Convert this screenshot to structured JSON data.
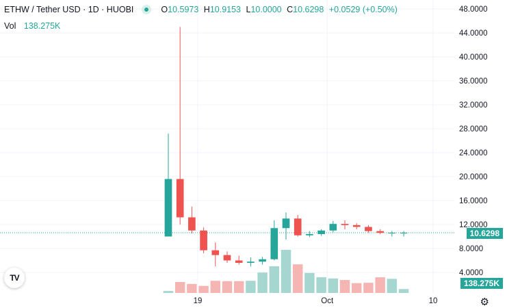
{
  "header": {
    "symbol": "ETHW / Tether USD · 1D · HUOBI",
    "ohlc": {
      "O": "10.5973",
      "H": "10.9153",
      "L": "10.0000",
      "C": "10.6298",
      "change": "+0.0529 (+0.50%)"
    }
  },
  "volume_label": "Vol",
  "volume_value": "138.275K",
  "last_price_tag": "10.6298",
  "volume_tag": "138.275K",
  "logo": "TV",
  "colors": {
    "up": "#26a69a",
    "down": "#ef5350",
    "up_vol": "#a5d6d0",
    "down_vol": "#f5b5b3"
  },
  "chart_data": {
    "type": "candlestick",
    "title": "ETHW / Tether USD · 1D · HUOBI",
    "y_axis_ticks": [
      "48.0000",
      "44.0000",
      "40.0000",
      "36.0000",
      "32.0000",
      "28.0000",
      "24.0000",
      "20.0000",
      "16.0000",
      "12.0000",
      "8.0000",
      "4.0000"
    ],
    "ylim": [
      0,
      49.5
    ],
    "x_axis_ticks": [
      {
        "label": "19",
        "index": 2.5
      },
      {
        "label": "Oct",
        "index": 13.5
      },
      {
        "label": "10",
        "index": 22.5
      }
    ],
    "x_index_range": [
      -14.3,
      24.3
    ],
    "last_price": 10.6298,
    "candles": [
      {
        "o": 10.0,
        "h": 27.2,
        "l": 10.0,
        "c": 19.6,
        "v": 5
      },
      {
        "o": 19.6,
        "h": 45.0,
        "l": 12.0,
        "c": 13.2,
        "v": 28
      },
      {
        "o": 13.2,
        "h": 15.0,
        "l": 10.5,
        "c": 11.0,
        "v": 23
      },
      {
        "o": 11.0,
        "h": 11.5,
        "l": 7.2,
        "c": 7.7,
        "v": 18
      },
      {
        "o": 7.7,
        "h": 9.0,
        "l": 5.0,
        "c": 6.9,
        "v": 31
      },
      {
        "o": 6.9,
        "h": 7.5,
        "l": 5.6,
        "c": 6.0,
        "v": 30
      },
      {
        "o": 6.0,
        "h": 6.8,
        "l": 5.3,
        "c": 5.6,
        "v": 30
      },
      {
        "o": 5.6,
        "h": 6.5,
        "l": 5.0,
        "c": 5.8,
        "v": 31
      },
      {
        "o": 5.8,
        "h": 6.6,
        "l": 5.3,
        "c": 6.2,
        "v": 52
      },
      {
        "o": 6.2,
        "h": 12.7,
        "l": 6.0,
        "c": 11.4,
        "v": 68
      },
      {
        "o": 11.4,
        "h": 14.0,
        "l": 9.5,
        "c": 13.0,
        "v": 110
      },
      {
        "o": 13.0,
        "h": 13.6,
        "l": 10.0,
        "c": 10.2,
        "v": 73
      },
      {
        "o": 10.2,
        "h": 10.9,
        "l": 9.9,
        "c": 10.4,
        "v": 51
      },
      {
        "o": 10.4,
        "h": 11.2,
        "l": 10.1,
        "c": 11.0,
        "v": 40
      },
      {
        "o": 11.0,
        "h": 12.6,
        "l": 10.7,
        "c": 12.1,
        "v": 37
      },
      {
        "o": 12.1,
        "h": 12.7,
        "l": 11.2,
        "c": 11.9,
        "v": 33
      },
      {
        "o": 11.9,
        "h": 12.2,
        "l": 11.2,
        "c": 11.6,
        "v": 25
      },
      {
        "o": 11.6,
        "h": 11.9,
        "l": 10.6,
        "c": 10.9,
        "v": 26
      },
      {
        "o": 10.9,
        "h": 11.2,
        "l": 10.4,
        "c": 10.6,
        "v": 40
      },
      {
        "o": 10.6,
        "h": 10.9,
        "l": 10.0,
        "c": 10.6298,
        "v": 36
      },
      {
        "o": 10.5973,
        "h": 10.9153,
        "l": 10.0,
        "c": 10.6298,
        "v": 10
      }
    ]
  }
}
